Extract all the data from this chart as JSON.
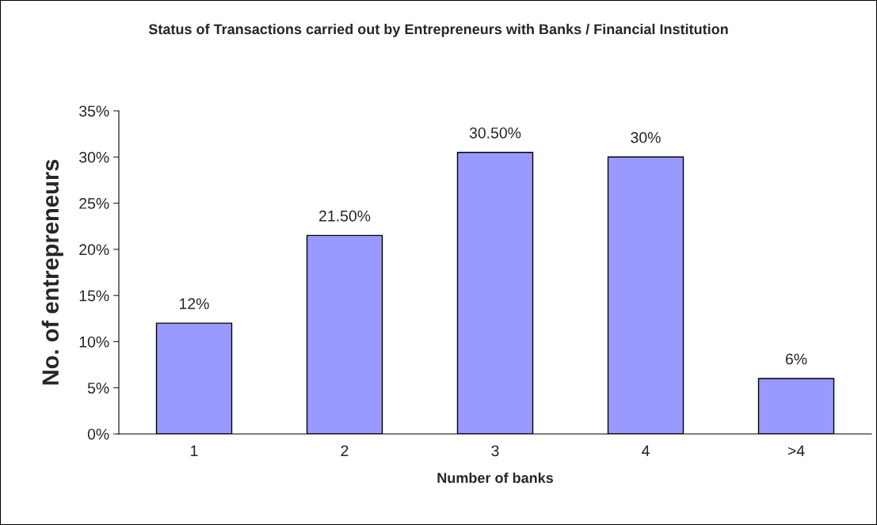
{
  "chart_data": {
    "type": "bar",
    "title": "Status of Transactions carried out by Entrepreneurs with Banks / Financial Institution",
    "xlabel": "Number of banks",
    "ylabel": "No. of entrepreneurs",
    "categories": [
      "1",
      "2",
      "3",
      "4",
      ">4"
    ],
    "values": [
      12,
      21.5,
      30.5,
      30,
      6
    ],
    "value_labels": [
      "12%",
      "21.50%",
      "30.50%",
      "30%",
      "6%"
    ],
    "color": "#9999ff",
    "ylim": [
      0,
      35
    ],
    "yticks": [
      {
        "value": 0,
        "label": "0%"
      },
      {
        "value": 5,
        "label": "5%"
      },
      {
        "value": 10,
        "label": "10%"
      },
      {
        "value": 15,
        "label": "15%"
      },
      {
        "value": 20,
        "label": "20%"
      },
      {
        "value": 25,
        "label": "25%"
      },
      {
        "value": 30,
        "label": "30%"
      },
      {
        "value": 35,
        "label": "35%"
      }
    ],
    "grid": false,
    "legend": false
  }
}
